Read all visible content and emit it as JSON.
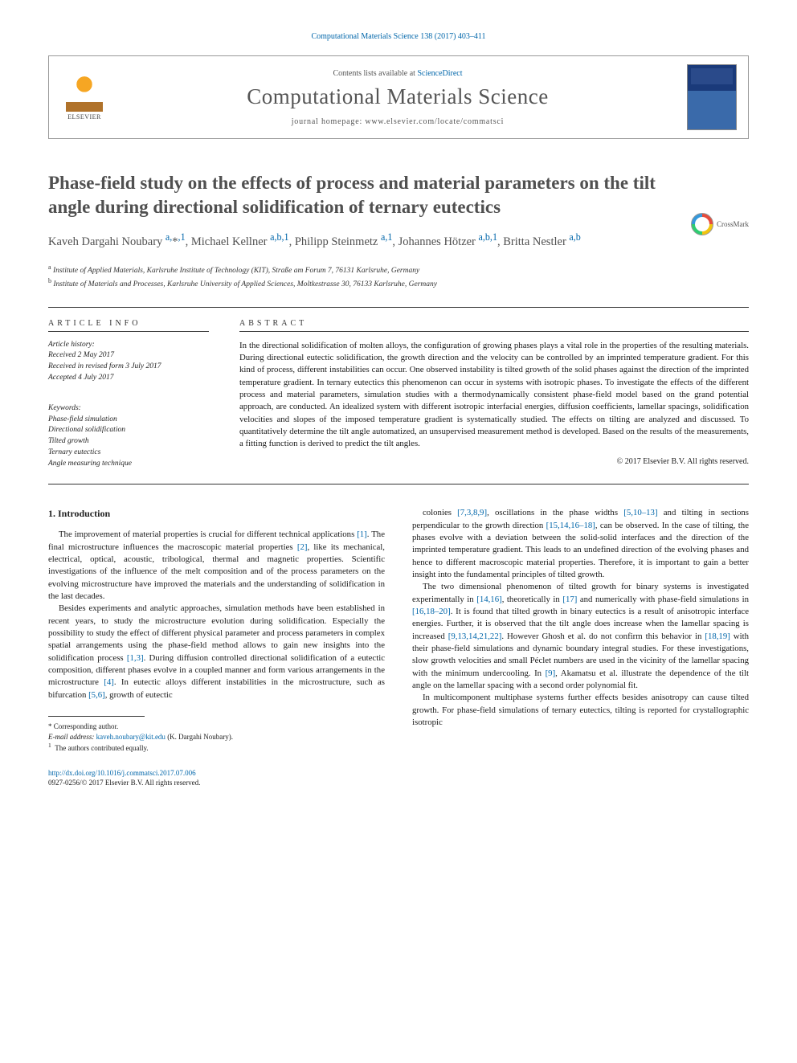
{
  "citation": "Computational Materials Science 138 (2017) 403–411",
  "header": {
    "contents_prefix": "Contents lists available at ",
    "contents_link": "ScienceDirect",
    "journal_title": "Computational Materials Science",
    "homepage_prefix": "journal homepage: ",
    "homepage_url": "www.elsevier.com/locate/commatsci",
    "publisher_logo_text": "ELSEVIER"
  },
  "crossmark_label": "CrossMark",
  "title": "Phase-field study on the effects of process and material parameters on the tilt angle during directional solidification of ternary eutectics",
  "authors_html": "Kaveh Dargahi Noubary <sup>a,</sup>*<sup>,1</sup>, Michael Kellner <sup>a,b,1</sup>, Philipp Steinmetz <sup>a,1</sup>, Johannes Hötzer <sup>a,b,1</sup>, Britta Nestler <sup>a,b</sup>",
  "affiliations": {
    "a": "Institute of Applied Materials, Karlsruhe Institute of Technology (KIT), Straße am Forum 7, 76131 Karlsruhe, Germany",
    "b": "Institute of Materials and Processes, Karlsruhe University of Applied Sciences, Moltkestrasse 30, 76133 Karlsruhe, Germany"
  },
  "info": {
    "heading": "ARTICLE INFO",
    "history_label": "Article history:",
    "received": "Received 2 May 2017",
    "revised": "Received in revised form 3 July 2017",
    "accepted": "Accepted 4 July 2017",
    "keywords_label": "Keywords:",
    "keywords": [
      "Phase-field simulation",
      "Directional solidification",
      "Tilted growth",
      "Ternary eutectics",
      "Angle measuring technique"
    ]
  },
  "abstract": {
    "heading": "ABSTRACT",
    "text": "In the directional solidification of molten alloys, the configuration of growing phases plays a vital role in the properties of the resulting materials. During directional eutectic solidification, the growth direction and the velocity can be controlled by an imprinted temperature gradient. For this kind of process, different instabilities can occur. One observed instability is tilted growth of the solid phases against the direction of the imprinted temperature gradient. In ternary eutectics this phenomenon can occur in systems with isotropic phases. To investigate the effects of the different process and material parameters, simulation studies with a thermodynamically consistent phase-field model based on the grand potential approach, are conducted. An idealized system with different isotropic interfacial energies, diffusion coefficients, lamellar spacings, solidification velocities and slopes of the imposed temperature gradient is systematically studied. The effects on tilting are analyzed and discussed. To quantitatively determine the tilt angle automatized, an unsupervised measurement method is developed. Based on the results of the measurements, a fitting function is derived to predict the tilt angles.",
    "copyright": "© 2017 Elsevier B.V. All rights reserved."
  },
  "section1_heading": "1. Introduction",
  "body": {
    "p1": "The improvement of material properties is crucial for different technical applications [1]. The final microstructure influences the macroscopic material properties [2], like its mechanical, electrical, optical, acoustic, tribological, thermal and magnetic properties. Scientific investigations of the influence of the melt composition and of the process parameters on the evolving microstructure have improved the materials and the understanding of solidification in the last decades.",
    "p2": "Besides experiments and analytic approaches, simulation methods have been established in recent years, to study the microstructure evolution during solidification. Especially the possibility to study the effect of different physical parameter and process parameters in complex spatial arrangements using the phase-field method allows to gain new insights into the solidification process [1,3]. During diffusion controlled directional solidification of a eutectic composition, different phases evolve in a coupled manner and form various arrangements in the microstructure [4]. In eutectic alloys different instabilities in the microstructure, such as bifurcation [5,6], growth of eutectic",
    "p3": "colonies [7,3,8,9], oscillations in the phase widths [5,10–13] and tilting in sections perpendicular to the growth direction [15,14,16–18], can be observed. In the case of tilting, the phases evolve with a deviation between the solid-solid interfaces and the direction of the imprinted temperature gradient. This leads to an undefined direction of the evolving phases and hence to different macroscopic material properties. Therefore, it is important to gain a better insight into the fundamental principles of tilted growth.",
    "p4": "The two dimensional phenomenon of tilted growth for binary systems is investigated experimentally in [14,16], theoretically in [17] and numerically with phase-field simulations in [16,18–20]. It is found that tilted growth in binary eutectics is a result of anisotropic interface energies. Further, it is observed that the tilt angle does increase when the lamellar spacing is increased [9,13,14,21,22]. However Ghosh et al. do not confirm this behavior in [18,19] with their phase-field simulations and dynamic boundary integral studies. For these investigations, slow growth velocities and small Péclet numbers are used in the vicinity of the lamellar spacing with the minimum undercooling. In [9], Akamatsu et al. illustrate the dependence of the tilt angle on the lamellar spacing with a second order polynomial fit.",
    "p5": "In multicomponent multiphase systems further effects besides anisotropy can cause tilted growth. For phase-field simulations of ternary eutectics, tilting is reported for crystallographic isotropic"
  },
  "footnotes": {
    "corresponding": "* Corresponding author.",
    "email_label": "E-mail address: ",
    "email": "kaveh.noubary@kit.edu",
    "email_suffix": " (K. Dargahi Noubary).",
    "contrib": "1  The authors contributed equally."
  },
  "doi": {
    "url": "http://dx.doi.org/10.1016/j.commatsci.2017.07.006",
    "issn_line": "0927-0256/© 2017 Elsevier B.V. All rights reserved."
  },
  "colors": {
    "link": "#0066aa",
    "text": "#1a1a1a",
    "heading_grey": "#505050",
    "rule": "#333333",
    "background": "#ffffff"
  }
}
